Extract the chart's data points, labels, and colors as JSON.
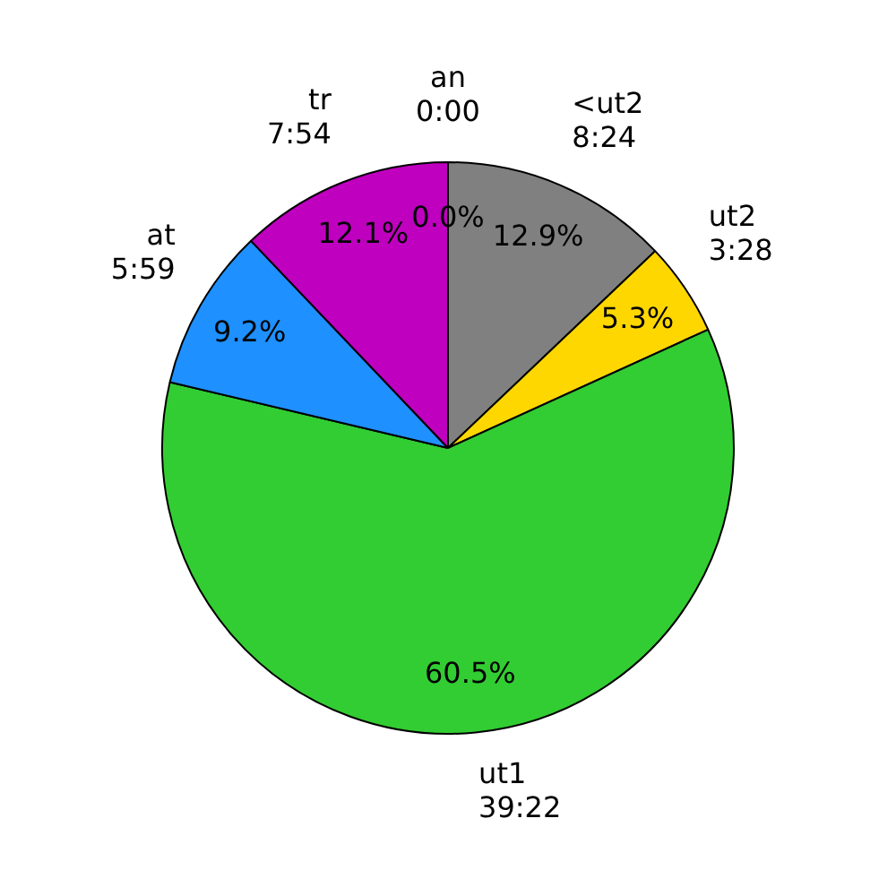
{
  "chart_data": {
    "type": "pie",
    "categories": [
      "an\n0:00",
      "<ut2\n8:24",
      "ut2\n3:28",
      "ut1\n39:22",
      "at\n5:59",
      "tr\n7:54"
    ],
    "values": [
      0.0,
      12.9,
      5.3,
      60.5,
      9.2,
      12.1
    ],
    "value_labels": [
      "0.0%",
      "12.9%",
      "5.3%",
      "60.5%",
      "9.2%",
      "12.1%"
    ],
    "colors": [
      "#ff0000",
      "#808080",
      "#ffd700",
      "#32cd32",
      "#1e90ff",
      "#bf00bf"
    ],
    "legend": false
  }
}
